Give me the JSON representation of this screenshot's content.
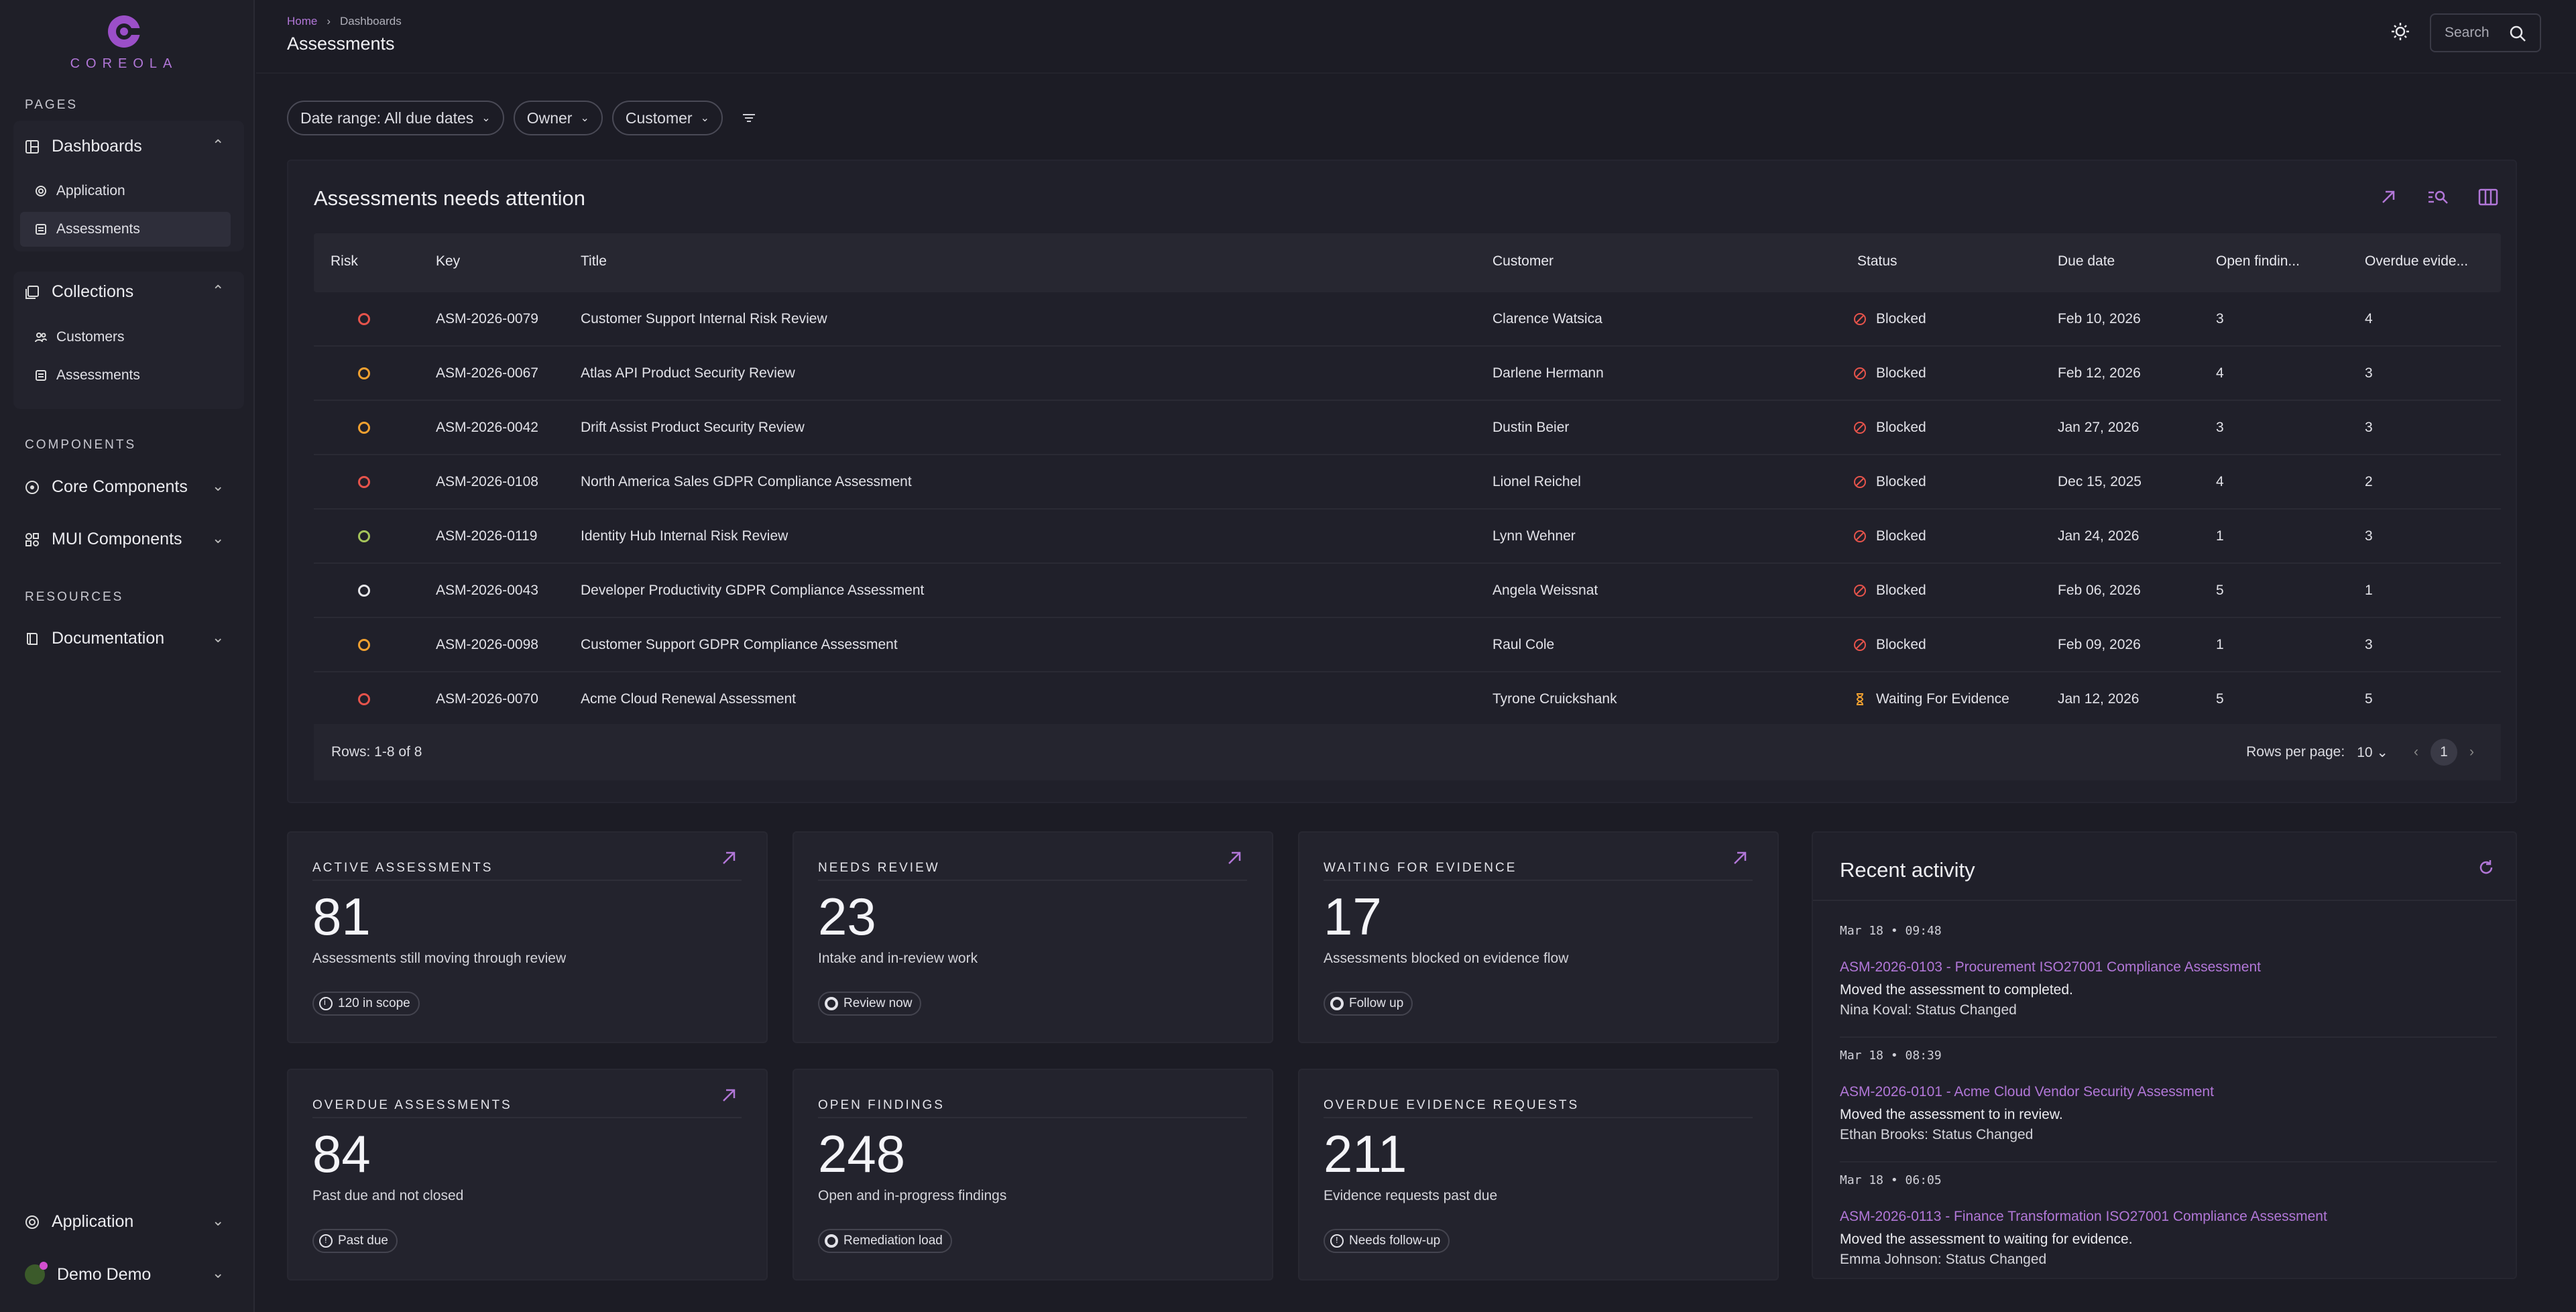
{
  "colors": {
    "accent": "#b277d8",
    "risk_red": "#e5534b",
    "risk_orange": "#f0a030",
    "risk_green": "#a5c45a",
    "risk_white": "#e6e6ea",
    "blocked": "#e5534b",
    "waiting": "#f0a030"
  },
  "brand": {
    "name": "COREOLA"
  },
  "sidebar": {
    "pages_label": "PAGES",
    "dashboards": {
      "label": "Dashboards",
      "items": [
        "Application",
        "Assessments"
      ]
    },
    "collections": {
      "label": "Collections",
      "items": [
        "Customers",
        "Assessments"
      ]
    },
    "components_label": "COMPONENTS",
    "core_components": "Core Components",
    "mui_components": "MUI Components",
    "resources_label": "RESOURCES",
    "documentation": "Documentation",
    "app_switcher": "Application",
    "user": "Demo Demo"
  },
  "header": {
    "breadcrumb": [
      "Home",
      "Dashboards"
    ],
    "title": "Assessments",
    "search_placeholder": "Search"
  },
  "filters": {
    "date_range": "Date range: All due dates",
    "owner": "Owner",
    "customer": "Customer"
  },
  "table": {
    "title": "Assessments needs attention",
    "columns": [
      "Risk",
      "Key",
      "Title",
      "Customer",
      "Status",
      "Due date",
      "Open findin...",
      "Overdue evide..."
    ],
    "rows": [
      {
        "risk": "red",
        "key": "ASM-2026-0079",
        "title": "Customer Support Internal Risk Review",
        "customer": "Clarence Watsica",
        "status": "Blocked",
        "due": "Feb 10, 2026",
        "open": "3",
        "overdue": "4"
      },
      {
        "risk": "orange",
        "key": "ASM-2026-0067",
        "title": "Atlas API Product Security Review",
        "customer": "Darlene Hermann",
        "status": "Blocked",
        "due": "Feb 12, 2026",
        "open": "4",
        "overdue": "3"
      },
      {
        "risk": "orange",
        "key": "ASM-2026-0042",
        "title": "Drift Assist Product Security Review",
        "customer": "Dustin Beier",
        "status": "Blocked",
        "due": "Jan 27, 2026",
        "open": "3",
        "overdue": "3"
      },
      {
        "risk": "red",
        "key": "ASM-2026-0108",
        "title": "North America Sales GDPR Compliance Assessment",
        "customer": "Lionel Reichel",
        "status": "Blocked",
        "due": "Dec 15, 2025",
        "open": "4",
        "overdue": "2"
      },
      {
        "risk": "green",
        "key": "ASM-2026-0119",
        "title": "Identity Hub Internal Risk Review",
        "customer": "Lynn Wehner",
        "status": "Blocked",
        "due": "Jan 24, 2026",
        "open": "1",
        "overdue": "3"
      },
      {
        "risk": "white",
        "key": "ASM-2026-0043",
        "title": "Developer Productivity GDPR Compliance Assessment",
        "customer": "Angela Weissnat",
        "status": "Blocked",
        "due": "Feb 06, 2026",
        "open": "5",
        "overdue": "1"
      },
      {
        "risk": "orange",
        "key": "ASM-2026-0098",
        "title": "Customer Support GDPR Compliance Assessment",
        "customer": "Raul Cole",
        "status": "Blocked",
        "due": "Feb 09, 2026",
        "open": "1",
        "overdue": "3"
      },
      {
        "risk": "red",
        "key": "ASM-2026-0070",
        "title": "Acme Cloud Renewal Assessment",
        "customer": "Tyrone Cruickshank",
        "status": "Waiting For Evidence",
        "due": "Jan 12, 2026",
        "open": "5",
        "overdue": "5"
      }
    ],
    "footer": {
      "rows": "Rows: 1-8 of 8",
      "rows_per_page_label": "Rows per page:",
      "rows_per_page": "10",
      "page": "1"
    }
  },
  "kpis": [
    {
      "label": "ACTIVE ASSESSMENTS",
      "value": "81",
      "desc": "Assessments still moving through review",
      "badge": "120 in scope",
      "badge_icon": "info",
      "has_link": true
    },
    {
      "label": "NEEDS REVIEW",
      "value": "23",
      "desc": "Intake and in-review work",
      "badge": "Review now",
      "badge_icon": "ring",
      "has_link": true
    },
    {
      "label": "WAITING FOR EVIDENCE",
      "value": "17",
      "desc": "Assessments blocked on evidence flow",
      "badge": "Follow up",
      "badge_icon": "ring",
      "has_link": true
    },
    {
      "label": "OVERDUE ASSESSMENTS",
      "value": "84",
      "desc": "Past due and not closed",
      "badge": "Past due",
      "badge_icon": "alert",
      "has_link": true
    },
    {
      "label": "OPEN FINDINGS",
      "value": "248",
      "desc": "Open and in-progress findings",
      "badge": "Remediation load",
      "badge_icon": "ring",
      "has_link": false
    },
    {
      "label": "OVERDUE EVIDENCE REQUESTS",
      "value": "211",
      "desc": "Evidence requests past due",
      "badge": "Needs follow-up",
      "badge_icon": "alert",
      "has_link": false
    }
  ],
  "activity": {
    "title": "Recent activity",
    "items": [
      {
        "time": "Mar 18 • 09:48",
        "link": "ASM-2026-0103 - Procurement ISO27001 Compliance Assessment",
        "msg": "Moved the assessment to completed.",
        "by": "Nina Koval: Status Changed"
      },
      {
        "time": "Mar 18 • 08:39",
        "link": "ASM-2026-0101 - Acme Cloud Vendor Security Assessment",
        "msg": "Moved the assessment to in review.",
        "by": "Ethan Brooks: Status Changed"
      },
      {
        "time": "Mar 18 • 06:05",
        "link": "ASM-2026-0113 - Finance Transformation ISO27001 Compliance Assessment",
        "msg": "Moved the assessment to waiting for evidence.",
        "by": "Emma Johnson: Status Changed"
      }
    ]
  }
}
